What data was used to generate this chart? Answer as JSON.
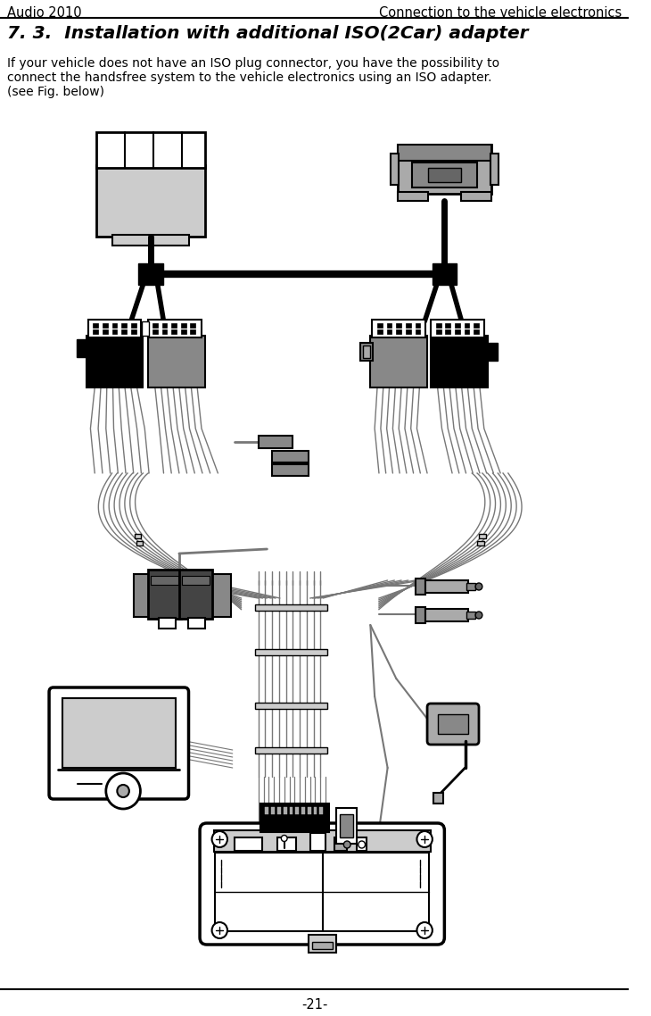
{
  "header_left": "Audio 2010",
  "header_right": "Connection to the vehicle electronics",
  "title": "7. 3.  Installation with additional ISO(2Car) adapter",
  "body_line1": "If your vehicle does not have an ISO plug connector, you have the possibility to",
  "body_line2": "connect the handsfree system to the vehicle electronics using an ISO adapter.",
  "body_line3": "(see Fig. below)",
  "footer": "-21-",
  "bg_color": "#ffffff",
  "text_color": "#000000",
  "gray1": "#cccccc",
  "gray2": "#aaaaaa",
  "gray3": "#888888",
  "gray4": "#666666",
  "gray5": "#444444",
  "black": "#000000",
  "white": "#ffffff",
  "lgray": "#e0e0e0",
  "cable_color": "#777777"
}
